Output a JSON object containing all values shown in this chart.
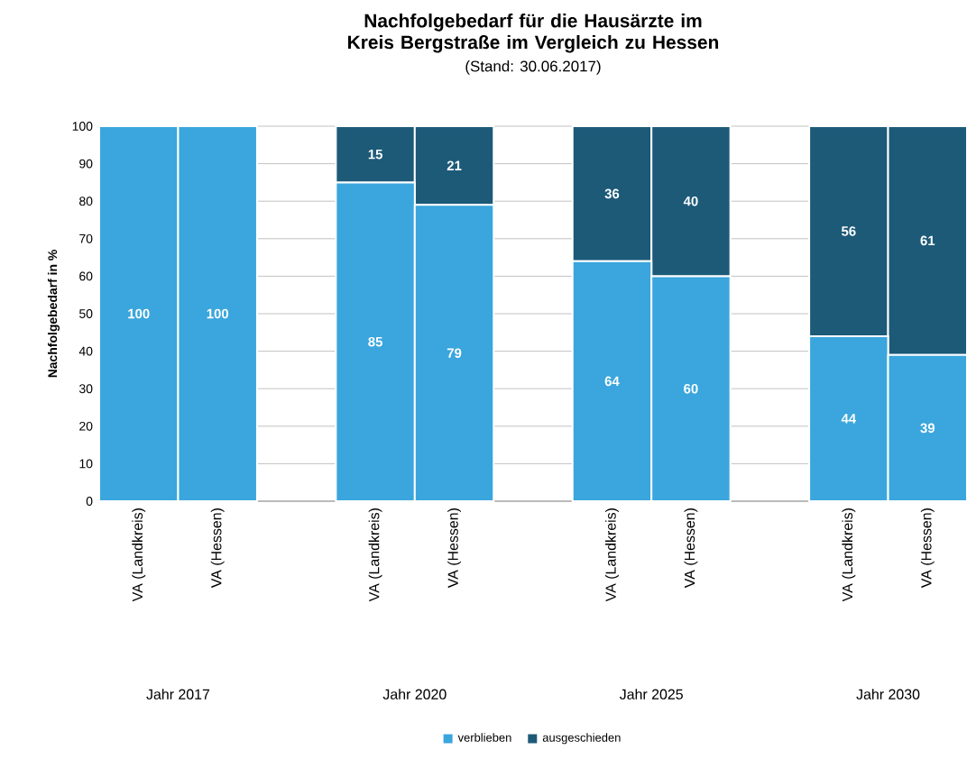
{
  "chart_data": {
    "type": "bar",
    "stacked": true,
    "title": "Nachfolgebedarf für die Hausärzte im Kreis Bergstraße im Vergleich zu Hessen",
    "subtitle": "(Stand: 30.06.2017)",
    "ylabel": "Nachfolgebedarf in %",
    "categories": [
      "VA (Landkreis)",
      "VA (Hessen)",
      null,
      "VA (Landkreis)",
      "VA (Hessen)",
      null,
      "VA (Landkreis)",
      "VA (Hessen)",
      null,
      "VA (Landkreis)",
      "VA (Hessen)"
    ],
    "series": [
      {
        "name": "verblieben",
        "color": "#3aa6dd",
        "values": [
          100,
          100,
          null,
          85,
          79,
          null,
          64,
          60,
          null,
          44,
          39
        ],
        "value_labels": [
          "100",
          "100",
          null,
          "85",
          "79",
          null,
          "64",
          "60",
          null,
          "44",
          "39"
        ]
      },
      {
        "name": "ausgeschieden",
        "color": "#1c5a78",
        "values": [
          0,
          0,
          null,
          15,
          21,
          null,
          36,
          40,
          null,
          56,
          61
        ],
        "value_labels": [
          null,
          null,
          null,
          "15",
          "21",
          null,
          "36",
          "40",
          null,
          "56",
          "61"
        ]
      }
    ],
    "annotations": [
      "Jahr 2017",
      "Jahr 2020",
      "Jahr 2025",
      "Jahr 2030"
    ],
    "ylim": [
      0,
      100
    ],
    "yticks": [
      0,
      10,
      20,
      30,
      40,
      50,
      60,
      70,
      80,
      90,
      100
    ],
    "grid": "y",
    "legend": "bottom"
  }
}
